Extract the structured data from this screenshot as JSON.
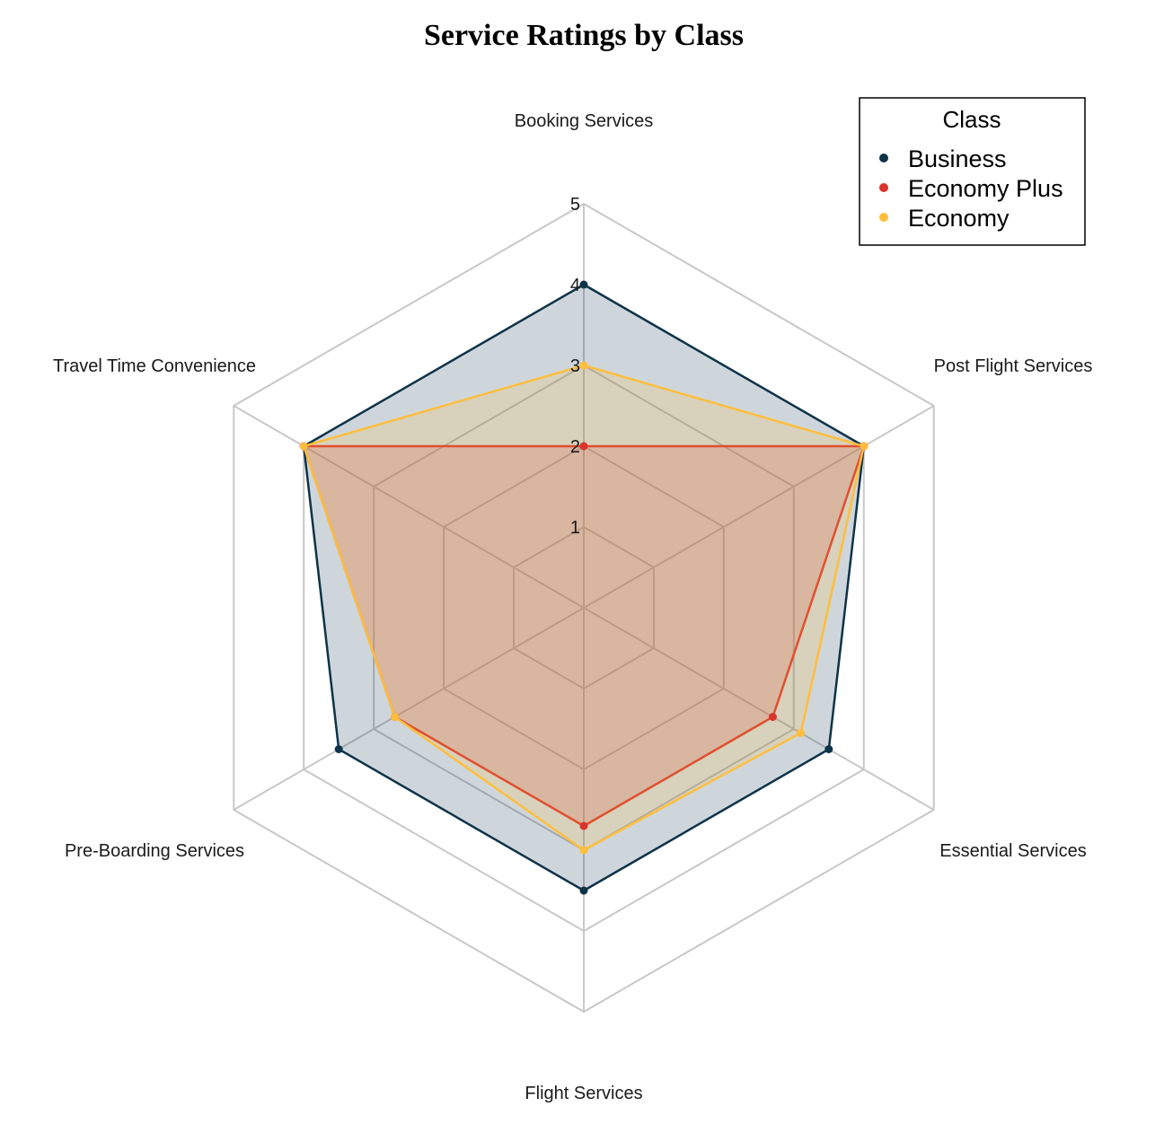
{
  "chart_data": {
    "type": "radar",
    "title": "Service Ratings by Class",
    "axes": [
      "Booking Services",
      "Post Flight Services",
      "Essential Services",
      "Flight Services",
      "Pre-Boarding Services",
      "Travel Time Convenience"
    ],
    "rlim": [
      0,
      5
    ],
    "ticks": [
      "1",
      "2",
      "3",
      "4",
      "5"
    ],
    "grid": true,
    "legend": {
      "title": "Class",
      "placement": "top-right"
    },
    "series": [
      {
        "name": "Business",
        "color": "#0d3349",
        "values": [
          4,
          4,
          3.5,
          3.5,
          3.5,
          4
        ]
      },
      {
        "name": "Economy Plus",
        "color": "#d9342b",
        "values": [
          2,
          4,
          2.7,
          2.7,
          2.7,
          4
        ]
      },
      {
        "name": "Economy",
        "color": "#ffbe3d",
        "values": [
          3,
          4,
          3.1,
          3.0,
          2.7,
          4
        ]
      }
    ]
  }
}
